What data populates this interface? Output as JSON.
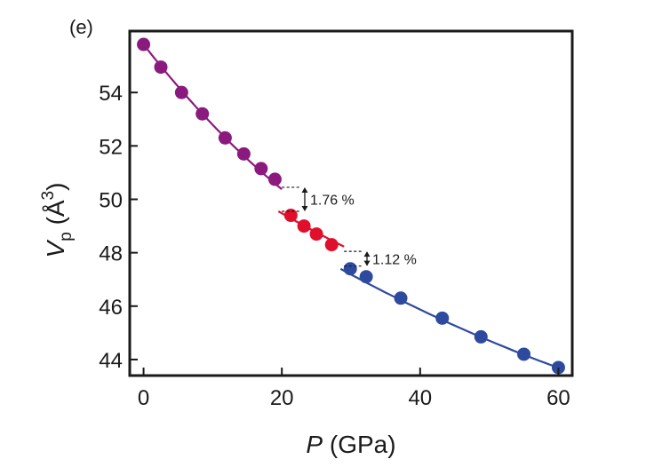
{
  "chart_data": {
    "type": "scatter",
    "panel_label": "(e)",
    "xlabel": {
      "symbol": "P",
      "unit": " (GPa)"
    },
    "ylabel": {
      "symbol": "V",
      "subscript": "p",
      "unit": " (Å",
      "superscript": "3",
      "close": ")"
    },
    "xlim": [
      -2,
      62
    ],
    "ylim": [
      43.4,
      56.3
    ],
    "xticks": [
      0,
      20,
      40,
      60
    ],
    "yticks": [
      44,
      46,
      48,
      50,
      52,
      54
    ],
    "grid": false,
    "series": [
      {
        "color": "#8B1A7E",
        "x": [
          0,
          2.5,
          5.5,
          8.5,
          11.8,
          14.5,
          17.0,
          19.0
        ],
        "y": [
          55.8,
          54.95,
          54.0,
          53.2,
          52.3,
          51.7,
          51.15,
          50.75
        ],
        "fit": {
          "x0": 0,
          "x1": 20,
          "a": 55.8,
          "b": -0.3312,
          "c": 0.003
        }
      },
      {
        "color": "#E0102C",
        "x": [
          21.3,
          23.2,
          25.0,
          27.2
        ],
        "y": [
          49.4,
          49.0,
          48.7,
          48.3
        ],
        "fit": {
          "x0": 19.5,
          "x1": 29.0,
          "a": 52.83,
          "b": -0.1877,
          "c": 0.001
        }
      },
      {
        "color": "#2E4A9E",
        "x": [
          29.9,
          32.2,
          37.2,
          43.2,
          48.8,
          55.0,
          60.0
        ],
        "y": [
          47.4,
          47.1,
          46.3,
          45.55,
          44.85,
          44.2,
          43.7
        ],
        "fit": {
          "x0": 28.5,
          "x1": 60.5,
          "a": 52.0,
          "b": -0.1826,
          "c": 0.000735
        }
      }
    ],
    "annotations": [
      {
        "text": "1.76 %",
        "x_start": 20,
        "x_end": 22.8,
        "y_top": 50.45,
        "y_bottom": 49.55
      },
      {
        "text": "1.12 %",
        "x_start": 29,
        "x_end": 31.8,
        "y_top": 48.05,
        "y_bottom": 47.5
      }
    ]
  }
}
